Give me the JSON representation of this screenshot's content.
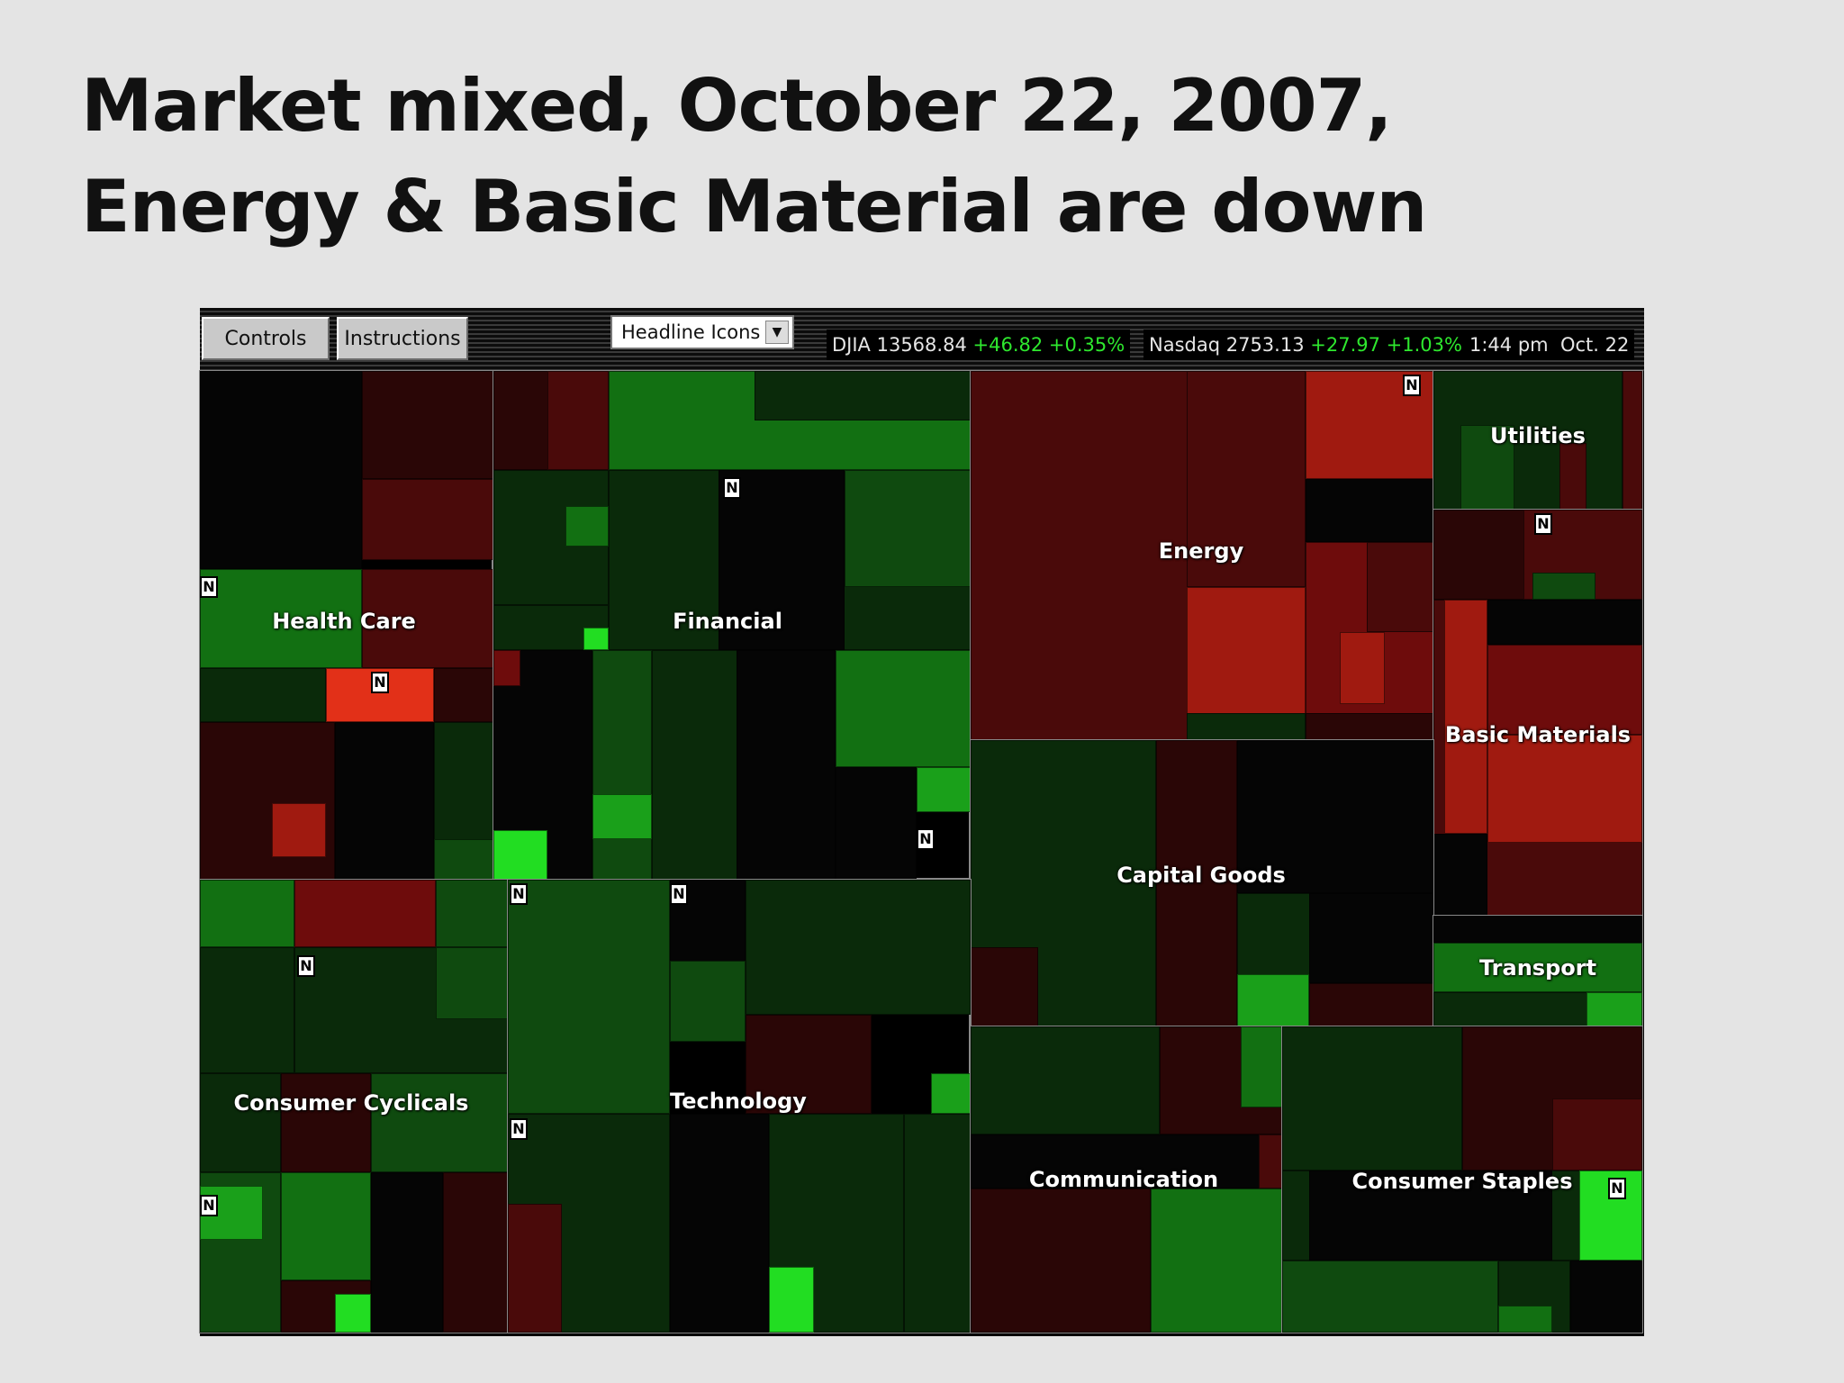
{
  "slide": {
    "title_line1": "Market mixed, October 22, 2007,",
    "title_line2": "Energy  & Basic Material are down"
  },
  "toolbar": {
    "controls_label": "Controls",
    "instructions_label": "Instructions",
    "view_select_value": "Headline Icons",
    "djia_label": "DJIA 13568.84",
    "djia_change": "+46.82 +0.35%",
    "nasdaq_label": "Nasdaq 2753.13",
    "nasdaq_change": "+27.97 +1.03%",
    "time": "1:44 pm",
    "date": "Oct. 22"
  },
  "news_icon_text": "N",
  "colors": {
    "positive": "#2ee82e",
    "negative": "#c01a10",
    "neutral": "#000000",
    "sector_border": "#888888"
  },
  "sectors": [
    {
      "id": "health-care",
      "label": "Health Care"
    },
    {
      "id": "financial",
      "label": "Financial"
    },
    {
      "id": "energy",
      "label": "Energy"
    },
    {
      "id": "utilities",
      "label": "Utilities"
    },
    {
      "id": "basic-materials",
      "label": "Basic Materials"
    },
    {
      "id": "capital-goods",
      "label": "Capital Goods"
    },
    {
      "id": "transport",
      "label": "Transport"
    },
    {
      "id": "consumer-cyclicals",
      "label": "Consumer Cyclicals"
    },
    {
      "id": "technology",
      "label": "Technology"
    },
    {
      "id": "communication",
      "label": "Communication"
    },
    {
      "id": "consumer-staples",
      "label": "Consumer Staples"
    }
  ]
}
